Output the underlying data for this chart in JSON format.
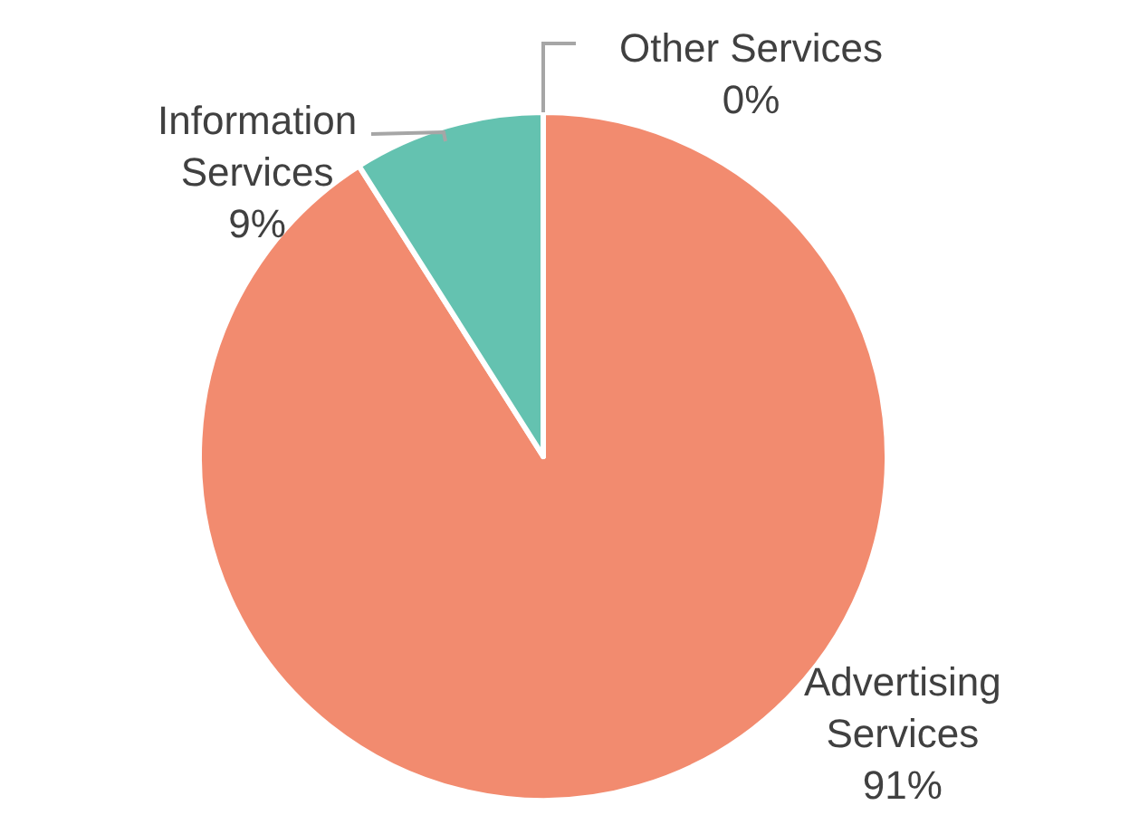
{
  "chart_data": {
    "type": "pie",
    "categories": [
      "Advertising Services",
      "Information Services",
      "Other Services"
    ],
    "values": [
      91,
      9,
      0
    ],
    "value_labels": [
      "91%",
      "9%",
      "0%"
    ],
    "colors": [
      "#f28b6f",
      "#64c2b0",
      "#a5a5a5"
    ]
  }
}
